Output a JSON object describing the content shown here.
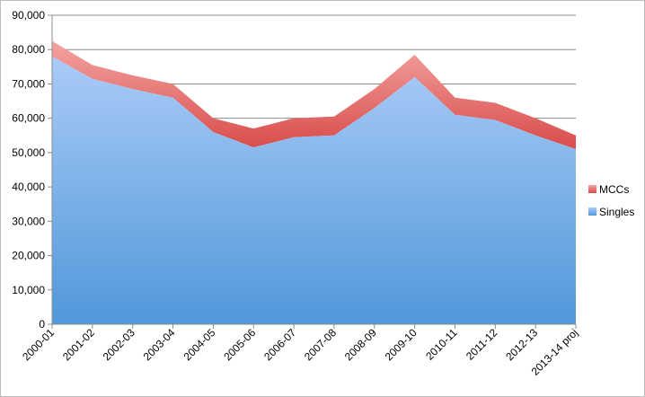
{
  "chart_data": {
    "type": "area",
    "stacked": true,
    "categories": [
      "2000-01",
      "2001-02",
      "2002-03",
      "2003-04",
      "2004-05",
      "2005-06",
      "2006-07",
      "2007-08",
      "2008-09",
      "2009-10",
      "2010-11",
      "2011-12",
      "2012-13",
      "2013-14 proj"
    ],
    "series": [
      {
        "name": "Singles",
        "values": [
          78000,
          71500,
          68500,
          66000,
          56000,
          51500,
          54500,
          55000,
          63000,
          72000,
          61000,
          59500,
          55000,
          51000
        ],
        "color_top": "#aacbf7",
        "color_bottom": "#5198da"
      },
      {
        "name": "MCCs",
        "values": [
          4500,
          4000,
          4000,
          4000,
          4000,
          5500,
          5500,
          5500,
          5500,
          6500,
          5000,
          5000,
          5000,
          4000
        ],
        "color_top": "#f4a4a2",
        "color_bottom": "#d84c4a"
      }
    ],
    "ylim": [
      0,
      90000
    ],
    "yticks": [
      "0",
      "10,000",
      "20,000",
      "30,000",
      "40,000",
      "50,000",
      "60,000",
      "70,000",
      "80,000",
      "90,000"
    ],
    "ytick_values": [
      0,
      10000,
      20000,
      30000,
      40000,
      50000,
      60000,
      70000,
      80000,
      90000
    ],
    "grid": true,
    "legend": {
      "position": "right",
      "entries": [
        "MCCs",
        "Singles"
      ]
    },
    "title": "",
    "xlabel": "",
    "ylabel": ""
  }
}
